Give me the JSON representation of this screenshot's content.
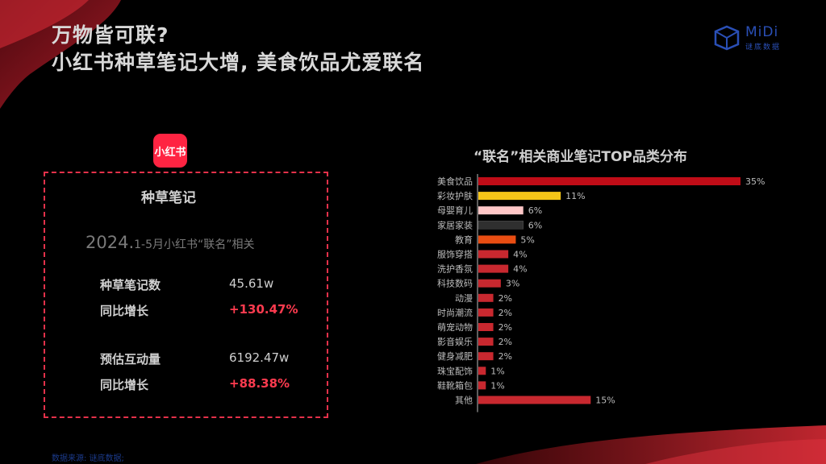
{
  "title": {
    "line1": "万物皆可联?",
    "line2": "小红书种草笔记大增, 美食饮品尤爱联名"
  },
  "logo": {
    "brand": "MiDi",
    "sub": "谜底数据"
  },
  "badge": {
    "text": "小红书"
  },
  "card": {
    "heading": "种草笔记",
    "subheading_year": "2024.",
    "subheading_rest": "1-5月小红书“联名”相关",
    "metrics": [
      {
        "label": "种草笔记数",
        "value": "45.61w"
      },
      {
        "label": "同比增长",
        "value": "+130.47%"
      },
      {
        "label": "预估互动量",
        "value": "6192.47w"
      },
      {
        "label": "同比增长",
        "value": "+88.38%"
      }
    ]
  },
  "colors": {
    "accent": "#c8282f",
    "red": "#e4314a",
    "yellow": "#f5c518",
    "pink": "#ffc7c7",
    "dark": "#2f2f2f",
    "orange": "#e94d12"
  },
  "chart_data": {
    "type": "bar",
    "orientation": "horizontal",
    "title": "“联名”相关商业笔记TOP品类分布",
    "categories": [
      "美食饮品",
      "彩妆护肤",
      "母婴育儿",
      "家居家装",
      "教育",
      "服饰穿搭",
      "洗护香氛",
      "科技数码",
      "动漫",
      "时尚潮流",
      "萌宠动物",
      "影音娱乐",
      "健身减肥",
      "珠宝配饰",
      "鞋靴箱包",
      "其他"
    ],
    "values": [
      35,
      11,
      6,
      6,
      5,
      4,
      4,
      3,
      2,
      2,
      2,
      2,
      2,
      1,
      1,
      15
    ],
    "value_labels": [
      "35%",
      "11%",
      "6%",
      "6%",
      "5%",
      "4%",
      "4%",
      "3%",
      "2%",
      "2%",
      "2%",
      "2%",
      "2%",
      "1%",
      "1%",
      "15%"
    ],
    "bar_colors": [
      "#c00c17",
      "#f5c518",
      "#ffc7c7",
      "#2f2f2f",
      "#e94d12",
      "#c8282f",
      "#c8282f",
      "#c8282f",
      "#c8282f",
      "#c8282f",
      "#c8282f",
      "#c8282f",
      "#c8282f",
      "#c8282f",
      "#c8282f",
      "#c8282f"
    ],
    "xlim": [
      0,
      35
    ],
    "grid": false,
    "legend": "none"
  },
  "source": "数据来源: 谜底数据;"
}
